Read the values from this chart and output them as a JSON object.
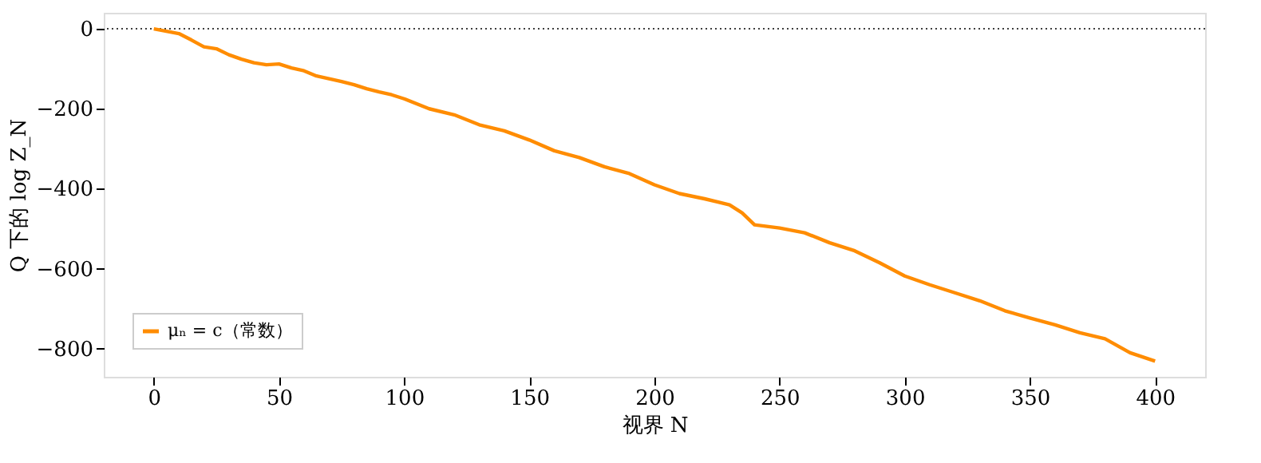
{
  "chart_data": {
    "type": "line",
    "xlabel": "视界 N",
    "ylabel": "Q 下的 log Z_N",
    "x": [
      0,
      5,
      10,
      15,
      20,
      25,
      30,
      35,
      40,
      45,
      50,
      55,
      60,
      65,
      70,
      75,
      80,
      85,
      90,
      95,
      100,
      110,
      120,
      130,
      140,
      150,
      160,
      170,
      180,
      190,
      200,
      210,
      220,
      230,
      235,
      240,
      250,
      260,
      270,
      280,
      290,
      300,
      310,
      320,
      330,
      340,
      350,
      360,
      370,
      380,
      390,
      400
    ],
    "series": [
      {
        "name": "μₙ = c（常数）",
        "color": "#ff8c00",
        "values": [
          0,
          -6,
          -12,
          -28,
          -45,
          -50,
          -65,
          -76,
          -85,
          -90,
          -88,
          -98,
          -105,
          -118,
          -125,
          -132,
          -140,
          -150,
          -158,
          -165,
          -175,
          -200,
          -215,
          -240,
          -255,
          -278,
          -305,
          -322,
          -345,
          -362,
          -390,
          -412,
          -425,
          -440,
          -460,
          -490,
          -498,
          -510,
          -535,
          -555,
          -585,
          -618,
          -640,
          -660,
          -680,
          -705,
          -723,
          -740,
          -760,
          -775,
          -810,
          -831
        ]
      }
    ],
    "xlim": [
      -20,
      420
    ],
    "ylim": [
      -870,
      40
    ],
    "xticks": [
      0,
      50,
      100,
      150,
      200,
      250,
      300,
      350,
      400
    ],
    "yticks": [
      -800,
      -600,
      -400,
      -200,
      0
    ],
    "ref_lines": [
      {
        "axis": "y",
        "value": 0,
        "color": "#000000",
        "line_style": "dotted"
      }
    ],
    "grid": false,
    "legend": "bottom left",
    "line_style": "solid",
    "marker": "none"
  }
}
